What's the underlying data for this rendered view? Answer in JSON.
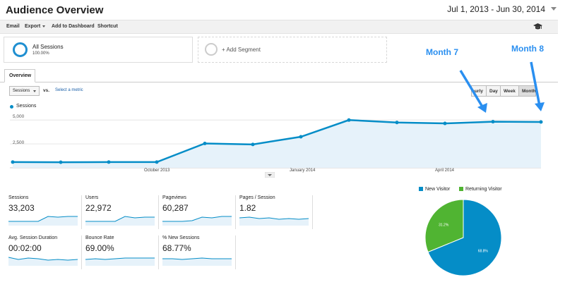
{
  "header": {
    "title": "Audience Overview",
    "date_range": "Jul 1, 2013 - Jun 30, 2014"
  },
  "toolbar": {
    "email": "Email",
    "export": "Export",
    "add_dashboard": "Add to Dashboard",
    "shortcut": "Shortcut",
    "icon": "graduation-cap-icon"
  },
  "segments": {
    "all_sessions_label": "All Sessions",
    "all_sessions_pct": "100.00%",
    "add_segment_label": "+ Add Segment"
  },
  "tabs": {
    "overview": "Overview"
  },
  "controls": {
    "metric_select_value": "Sessions",
    "vs_label": "vs.",
    "select_metric_link": "Select a metric",
    "time_buttons": [
      "Hourly",
      "Day",
      "Week",
      "Month"
    ],
    "active_time_button": "Month"
  },
  "colors": {
    "accent": "#058dc7",
    "area_fill": "#e6f2fa",
    "new_visitor": "#058dc7",
    "returning_visitor": "#50b432",
    "annotation": "#2a8ff0"
  },
  "chart_data": {
    "type": "area",
    "legend": "Sessions",
    "x_tick_labels": [
      "October 2013",
      "January 2014",
      "April 2014"
    ],
    "y_tick_labels": [
      "2,500",
      "5,000"
    ],
    "ylim": [
      0,
      6500
    ],
    "x": [
      "Jul 2013",
      "Aug 2013",
      "Sep 2013",
      "Oct 2013",
      "Nov 2013",
      "Dec 2013",
      "Jan 2014",
      "Feb 2014",
      "Mar 2014",
      "Apr 2014",
      "May 2014",
      "Jun 2014"
    ],
    "values": [
      600,
      580,
      600,
      600,
      2550,
      2450,
      3250,
      5000,
      4750,
      4650,
      4830,
      4800
    ],
    "grid": true
  },
  "annotations": {
    "month7": "Month 7",
    "month8": "Month 8"
  },
  "metrics": [
    {
      "label": "Sessions",
      "value": "33,203"
    },
    {
      "label": "Users",
      "value": "22,972"
    },
    {
      "label": "Pageviews",
      "value": "60,287"
    },
    {
      "label": "Pages / Session",
      "value": "1.82"
    },
    {
      "label": "Avg. Session Duration",
      "value": "00:02:00"
    },
    {
      "label": "Bounce Rate",
      "value": "69.00%"
    },
    {
      "label": "% New Sessions",
      "value": "68.77%"
    }
  ],
  "pie": {
    "legend": [
      "New Visitor",
      "Returning Visitor"
    ],
    "slices": [
      {
        "name": "New Visitor",
        "value": 68.8,
        "label": "68.8%"
      },
      {
        "name": "Returning Visitor",
        "value": 31.2,
        "label": "31.2%"
      }
    ]
  }
}
